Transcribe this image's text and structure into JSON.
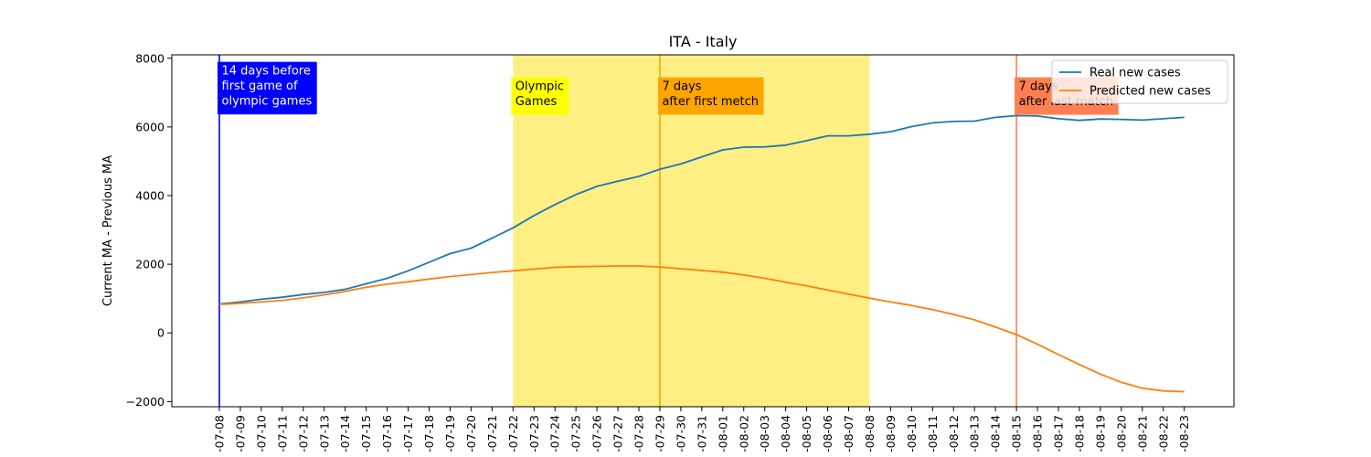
{
  "chart_data": {
    "type": "line",
    "title": "ITA - Italy",
    "xlabel": "",
    "ylabel": "Current MA - Previous MA",
    "ylim": [
      -2150,
      8100
    ],
    "yticks": [
      -2000,
      0,
      2000,
      4000,
      6000,
      8000
    ],
    "x": [
      "2021-07-08",
      "2021-07-09",
      "2021-07-10",
      "2021-07-11",
      "2021-07-12",
      "2021-07-13",
      "2021-07-14",
      "2021-07-15",
      "2021-07-16",
      "2021-07-17",
      "2021-07-18",
      "2021-07-19",
      "2021-07-20",
      "2021-07-21",
      "2021-07-22",
      "2021-07-23",
      "2021-07-24",
      "2021-07-25",
      "2021-07-26",
      "2021-07-27",
      "2021-07-28",
      "2021-07-29",
      "2021-07-30",
      "2021-07-31",
      "2021-08-01",
      "2021-08-02",
      "2021-08-03",
      "2021-08-04",
      "2021-08-05",
      "2021-08-06",
      "2021-08-07",
      "2021-08-08",
      "2021-08-09",
      "2021-08-10",
      "2021-08-11",
      "2021-08-12",
      "2021-08-13",
      "2021-08-14",
      "2021-08-15",
      "2021-08-16",
      "2021-08-17",
      "2021-08-18",
      "2021-08-19",
      "2021-08-20",
      "2021-08-21",
      "2021-08-22",
      "2021-08-23"
    ],
    "xtick_labels": [
      "-07-08",
      "-07-09",
      "-07-10",
      "-07-11",
      "-07-12",
      "-07-13",
      "-07-14",
      "-07-15",
      "-07-16",
      "-07-17",
      "-07-18",
      "-07-19",
      "-07-20",
      "-07-21",
      "-07-22",
      "-07-23",
      "-07-24",
      "-07-25",
      "-07-26",
      "-07-27",
      "-07-28",
      "-07-29",
      "-07-30",
      "-07-31",
      "-08-01",
      "-08-02",
      "-08-03",
      "-08-04",
      "-08-05",
      "-08-06",
      "-08-07",
      "-08-08",
      "-08-09",
      "-08-10",
      "-08-11",
      "-08-12",
      "-08-13",
      "-08-14",
      "-08-15",
      "-08-16",
      "-08-17",
      "-08-18",
      "-08-19",
      "-08-20",
      "-08-21",
      "-08-22",
      "-08-23"
    ],
    "series": [
      {
        "name": "Real new cases",
        "color": "#1f77b4",
        "values": [
          840,
          900,
          980,
          1040,
          1120,
          1180,
          1270,
          1430,
          1590,
          1810,
          2060,
          2310,
          2470,
          2760,
          3060,
          3420,
          3740,
          4030,
          4270,
          4420,
          4560,
          4770,
          4920,
          5130,
          5330,
          5410,
          5420,
          5470,
          5600,
          5740,
          5740,
          5790,
          5860,
          6010,
          6120,
          6160,
          6170,
          6280,
          6330,
          6320,
          6240,
          6190,
          6230,
          6220,
          6200,
          6240,
          6280
        ]
      },
      {
        "name": "Predicted new cases",
        "color": "#ff7f0e",
        "values": [
          830,
          860,
          900,
          950,
          1020,
          1110,
          1210,
          1330,
          1420,
          1490,
          1570,
          1640,
          1700,
          1760,
          1810,
          1860,
          1910,
          1930,
          1940,
          1950,
          1950,
          1920,
          1870,
          1820,
          1770,
          1690,
          1590,
          1480,
          1370,
          1250,
          1130,
          1010,
          900,
          800,
          680,
          540,
          380,
          170,
          -50,
          -330,
          -630,
          -920,
          -1200,
          -1440,
          -1610,
          -1690,
          -1710
        ]
      }
    ],
    "shaded_region": {
      "from": "2021-07-22",
      "to": "2021-08-08",
      "color": "#fdef84"
    },
    "vlines": [
      {
        "x": "2021-07-08",
        "color": "#0000ff"
      },
      {
        "x": "2021-07-29",
        "color": "#ffa500"
      },
      {
        "x": "2021-08-15",
        "color": "#ff7f50"
      }
    ],
    "annotations": [
      {
        "x": "2021-07-08",
        "y": 7550,
        "lines": [
          "14 days before",
          "first game of",
          "olympic games"
        ],
        "bg": "#0000ff",
        "text_color": "#ffffff"
      },
      {
        "x": "2021-07-22",
        "y": 7100,
        "lines": [
          "Olympic",
          "Games"
        ],
        "bg": "#ffff00",
        "text_color": "#000000"
      },
      {
        "x": "2021-07-29",
        "y": 7100,
        "lines": [
          "7 days",
          "after first metch"
        ],
        "bg": "#ffa500",
        "text_color": "#000000"
      },
      {
        "x": "2021-08-15",
        "y": 7100,
        "lines": [
          "7 days",
          "after last match"
        ],
        "bg": "#ff7f50",
        "text_color": "#000000"
      }
    ],
    "legend": {
      "position": "upper-right",
      "entries": [
        "Real new cases",
        "Predicted new cases"
      ]
    },
    "grid": false
  }
}
